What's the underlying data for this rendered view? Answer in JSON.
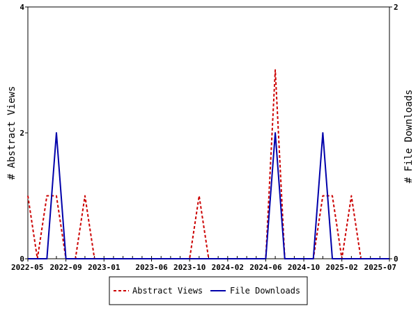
{
  "chart_data": {
    "type": "line",
    "x": [
      "2022-05",
      "2022-06",
      "2022-07",
      "2022-08",
      "2022-09",
      "2022-10",
      "2022-11",
      "2022-12",
      "2023-01",
      "2023-02",
      "2023-03",
      "2023-04",
      "2023-05",
      "2023-06",
      "2023-07",
      "2023-08",
      "2023-09",
      "2023-10",
      "2023-11",
      "2023-12",
      "2024-01",
      "2024-02",
      "2024-03",
      "2024-04",
      "2024-05",
      "2024-06",
      "2024-07",
      "2024-08",
      "2024-09",
      "2024-10",
      "2024-11",
      "2024-12",
      "2025-01",
      "2025-02",
      "2025-03",
      "2025-04",
      "2025-05",
      "2025-06",
      "2025-07"
    ],
    "x_tick_labels": [
      "2022-05",
      "2022-09",
      "2023-01",
      "2023-06",
      "2023-10",
      "2024-02",
      "2024-06",
      "2024-10",
      "2025-02",
      "2025-07"
    ],
    "series": [
      {
        "name": "Abstract Views",
        "axis": "left",
        "color": "#cc0000",
        "dash": true,
        "values": [
          1,
          0,
          1,
          1,
          0,
          0,
          1,
          0,
          0,
          0,
          0,
          0,
          0,
          0,
          0,
          0,
          0,
          0,
          1,
          0,
          0,
          0,
          0,
          0,
          0,
          0,
          3,
          0,
          0,
          0,
          0,
          1,
          1,
          0,
          1,
          0,
          0,
          0,
          0
        ]
      },
      {
        "name": "File Downloads",
        "axis": "right",
        "color": "#0000aa",
        "dash": false,
        "values": [
          0,
          0,
          0,
          1,
          0,
          0,
          0,
          0,
          0,
          0,
          0,
          0,
          0,
          0,
          0,
          0,
          0,
          0,
          0,
          0,
          0,
          0,
          0,
          0,
          0,
          0,
          1,
          0,
          0,
          0,
          0,
          1,
          0,
          0,
          0,
          0,
          0,
          0,
          0
        ]
      }
    ],
    "y_left": {
      "label": "# Abstract Views",
      "ylim": [
        0,
        4
      ],
      "ticks": [
        "0",
        "2",
        "4"
      ]
    },
    "y_right": {
      "label": "# File Downloads",
      "ylim": [
        0,
        2
      ],
      "ticks": [
        "0",
        "2"
      ]
    },
    "grid": false,
    "legend_position": "bottom"
  }
}
